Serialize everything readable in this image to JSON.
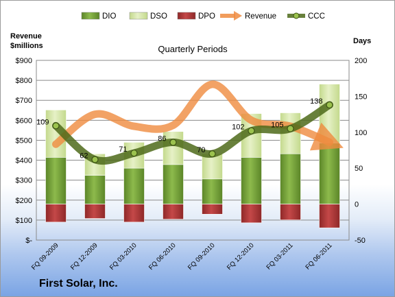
{
  "company": "First Solar, Inc.",
  "chart_data": {
    "type": "bar",
    "title": "Quarterly Periods",
    "left_axis_title": [
      "Revenue",
      "$millions"
    ],
    "right_axis_title": "Days",
    "categories": [
      "FQ 09-2009",
      "FQ 12-2009",
      "FQ 03-2010",
      "FQ 06-2010",
      "FQ 09-2010",
      "FQ 12-2010",
      "FQ 03-2011",
      "FQ 06-2011"
    ],
    "left_ticks": [
      "$900",
      "$800",
      "$700",
      "$600",
      "$500",
      "$400",
      "$300",
      "$200",
      "$100",
      "$-"
    ],
    "right_ticks": [
      "200",
      "150",
      "100",
      "50",
      "0",
      "-50"
    ],
    "left_range": [
      0,
      900
    ],
    "right_range": [
      -50,
      200
    ],
    "legend": [
      "DIO",
      "DSO",
      "DPO",
      "Revenue",
      "CCC"
    ],
    "legend_position": "top",
    "colors": {
      "DIO": "#77a038",
      "DSO": "#d5e6a6",
      "DPO": "#b03636",
      "Revenue": "#ef8b3f",
      "CCC": "#4e6a1a"
    },
    "series": [
      {
        "name": "DIO",
        "axis": "right",
        "values": [
          65,
          40,
          50,
          55,
          35,
          65,
          70,
          85
        ]
      },
      {
        "name": "DSO",
        "axis": "right",
        "values": [
          66,
          30,
          36,
          46,
          35,
          61,
          57,
          82
        ]
      },
      {
        "name": "DPO",
        "axis": "right",
        "values": [
          -25,
          -20,
          -25,
          -21,
          -14,
          -26,
          -22,
          -33
        ]
      },
      {
        "name": "Revenue",
        "axis": "left",
        "values": [
          480,
          630,
          570,
          575,
          780,
          600,
          570,
          490
        ]
      },
      {
        "name": "CCC",
        "axis": "right",
        "values": [
          109,
          62,
          71,
          86,
          70,
          102,
          105,
          138
        ]
      }
    ],
    "data_labels": [
      "109",
      "62",
      "71",
      "86",
      "70",
      "102",
      "105",
      "138"
    ]
  }
}
